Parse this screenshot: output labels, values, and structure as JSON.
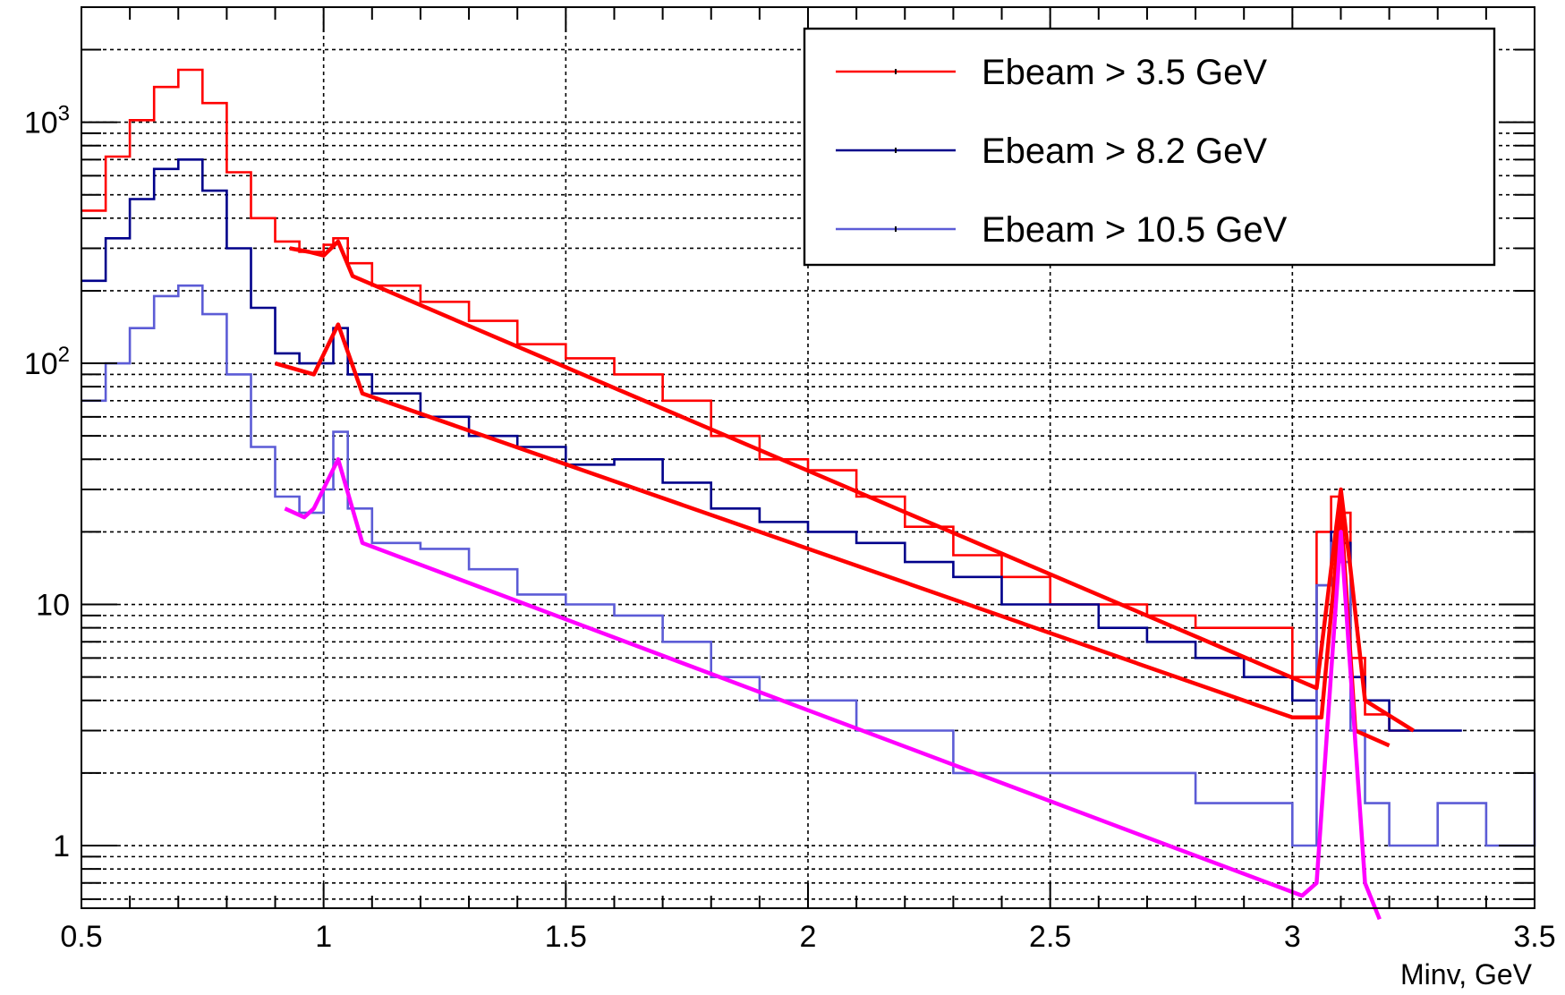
{
  "chart_data": {
    "type": "line",
    "title": "",
    "xlabel": "Minv, GeV",
    "ylabel": "",
    "xlim": [
      0.5,
      3.5
    ],
    "ylim": [
      0.55,
      3000
    ],
    "yscale": "log",
    "grid": true,
    "legend_position": "top-right",
    "x_ticks": [
      {
        "value": 0.5,
        "label": "0.5"
      },
      {
        "value": 1,
        "label": "1"
      },
      {
        "value": 1.5,
        "label": "1.5"
      },
      {
        "value": 2,
        "label": "2"
      },
      {
        "value": 2.5,
        "label": "2.5"
      },
      {
        "value": 3,
        "label": "3"
      },
      {
        "value": 3.5,
        "label": "3.5"
      }
    ],
    "y_ticks": [
      {
        "value": 1,
        "base": "1",
        "exp": ""
      },
      {
        "value": 10,
        "base": "10",
        "exp": ""
      },
      {
        "value": 100,
        "base": "10",
        "exp": "2"
      },
      {
        "value": 1000,
        "base": "10",
        "exp": "3"
      }
    ],
    "x_grid": [
      1,
      1.5,
      2,
      2.5,
      3
    ],
    "y_grid": [
      0.6,
      0.7,
      0.8,
      0.9,
      1,
      2,
      3,
      4,
      5,
      6,
      7,
      8,
      9,
      10,
      20,
      30,
      40,
      50,
      60,
      70,
      80,
      90,
      100,
      200,
      300,
      400,
      500,
      600,
      700,
      800,
      900,
      1000,
      2000
    ],
    "series": [
      {
        "name": "Ebeam > 3.5 GeV",
        "kind": "histogram",
        "color": "#ff0000",
        "x": [
          0.5,
          0.55,
          0.6,
          0.65,
          0.7,
          0.75,
          0.8,
          0.85,
          0.9,
          0.95,
          1.0,
          1.02,
          1.05,
          1.1,
          1.2,
          1.3,
          1.4,
          1.5,
          1.6,
          1.7,
          1.8,
          1.9,
          2.0,
          2.1,
          2.2,
          2.3,
          2.4,
          2.5,
          2.6,
          2.7,
          2.8,
          2.9,
          3.0,
          3.05,
          3.08,
          3.1,
          3.12,
          3.15,
          3.2
        ],
        "values": [
          430,
          720,
          1020,
          1400,
          1650,
          1200,
          620,
          400,
          320,
          290,
          310,
          330,
          260,
          210,
          180,
          150,
          120,
          105,
          90,
          70,
          50,
          40,
          36,
          28,
          21,
          16,
          13,
          10,
          10,
          9,
          8,
          8,
          5,
          20,
          28,
          24,
          6,
          3.5,
          3
        ]
      },
      {
        "name": "Ebeam > 8.2 GeV",
        "kind": "histogram",
        "color": "#00008b",
        "x": [
          0.5,
          0.55,
          0.6,
          0.65,
          0.7,
          0.75,
          0.8,
          0.85,
          0.9,
          0.95,
          1.0,
          1.02,
          1.05,
          1.1,
          1.2,
          1.3,
          1.4,
          1.5,
          1.6,
          1.7,
          1.8,
          1.9,
          2.0,
          2.1,
          2.2,
          2.3,
          2.4,
          2.5,
          2.6,
          2.7,
          2.8,
          2.9,
          3.0,
          3.05,
          3.08,
          3.1,
          3.12,
          3.15,
          3.2,
          3.3
        ],
        "values": [
          220,
          330,
          480,
          640,
          700,
          520,
          300,
          170,
          110,
          100,
          100,
          140,
          90,
          75,
          60,
          50,
          45,
          38,
          40,
          32,
          25,
          22,
          20,
          18,
          15,
          13,
          10,
          10,
          8,
          7,
          6,
          5,
          4,
          12,
          20,
          18,
          5,
          4,
          3,
          3
        ]
      },
      {
        "name": "Ebeam > 10.5 GeV",
        "kind": "histogram",
        "color": "#5c5cd6",
        "x": [
          0.5,
          0.55,
          0.6,
          0.65,
          0.7,
          0.75,
          0.8,
          0.85,
          0.9,
          0.95,
          1.0,
          1.02,
          1.05,
          1.1,
          1.2,
          1.3,
          1.4,
          1.5,
          1.6,
          1.7,
          1.8,
          1.9,
          2.0,
          2.1,
          2.2,
          2.3,
          2.4,
          2.5,
          2.6,
          2.7,
          2.8,
          2.9,
          3.0,
          3.05,
          3.08,
          3.1,
          3.12,
          3.15,
          3.2,
          3.3,
          3.4,
          3.5
        ],
        "values": [
          70,
          100,
          140,
          190,
          210,
          160,
          90,
          45,
          28,
          24,
          30,
          52,
          25,
          18,
          17,
          14,
          11,
          10,
          9,
          7,
          5,
          4,
          4,
          3,
          3,
          2,
          2,
          2,
          2,
          2,
          1.5,
          1.5,
          1,
          12,
          18,
          15,
          3,
          1.5,
          1,
          1.5,
          1,
          2
        ]
      }
    ],
    "fits": [
      {
        "color": "#ff0000",
        "x": [
          0.93,
          0.97,
          1.0,
          1.03,
          1.06,
          3.05,
          3.08,
          3.1,
          3.12,
          3.15,
          3.25
        ],
        "values": [
          300,
          290,
          280,
          320,
          230,
          4.5,
          14,
          30,
          14,
          4,
          3
        ]
      },
      {
        "color": "#ff0000",
        "x": [
          0.9,
          0.98,
          1.03,
          1.08,
          3.0,
          3.06,
          3.1,
          3.13,
          3.2
        ],
        "values": [
          100,
          90,
          145,
          75,
          3.4,
          3.4,
          25,
          3,
          2.6
        ]
      },
      {
        "color": "#ff00ff",
        "x": [
          0.92,
          0.96,
          0.98,
          1.03,
          1.08,
          3.02,
          3.05,
          3.1,
          3.15,
          3.18
        ],
        "values": [
          25,
          23,
          25,
          40,
          18,
          0.62,
          0.7,
          20,
          0.7,
          0.4
        ]
      }
    ]
  }
}
